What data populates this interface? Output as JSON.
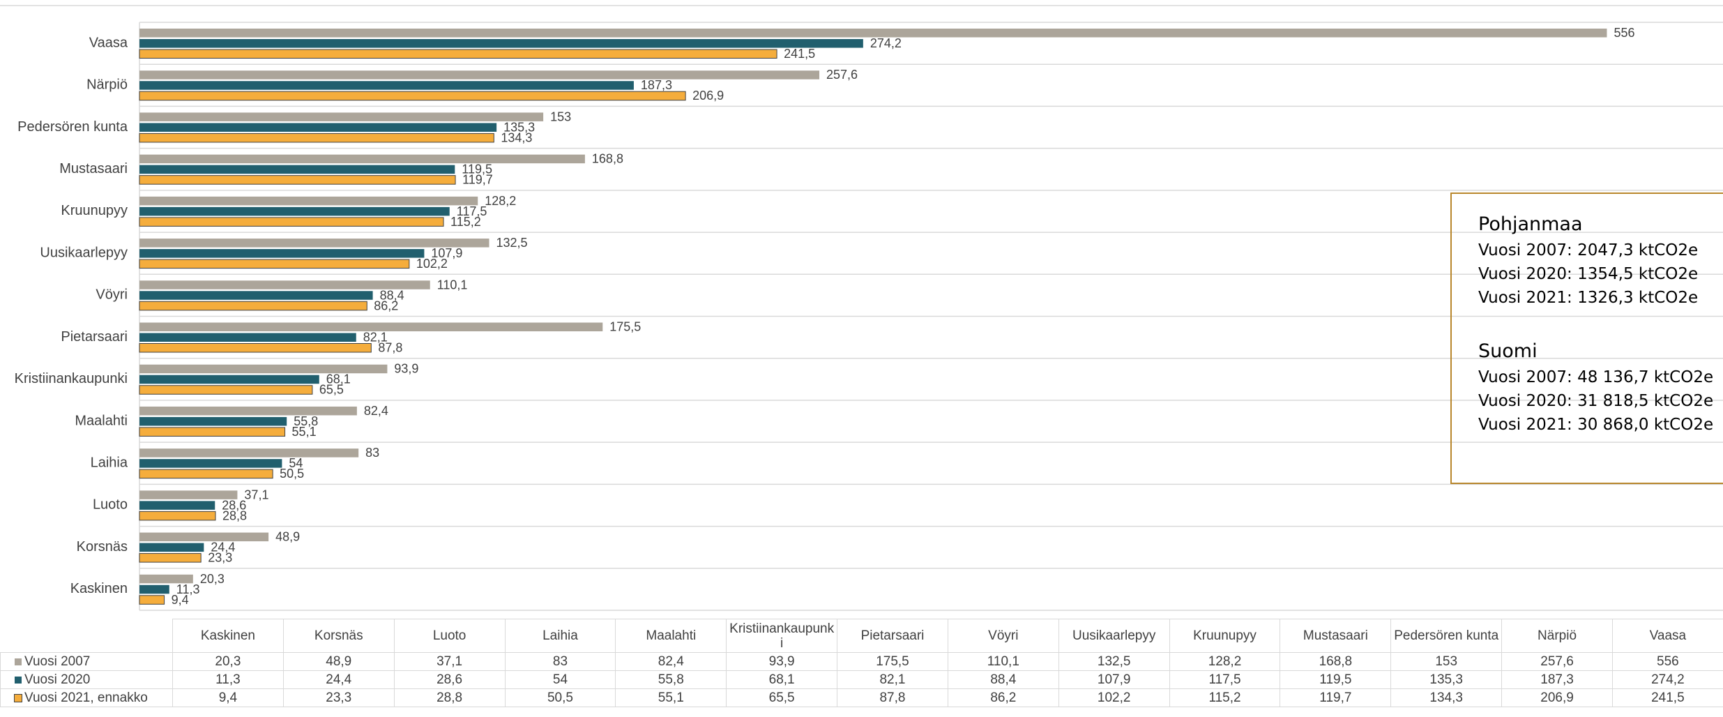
{
  "chart_data": {
    "type": "barh",
    "categories": [
      "Kaskinen",
      "Korsnäs",
      "Luoto",
      "Laihia",
      "Maalahti",
      "Kristiinankaupunki",
      "Pietarsaari",
      "Vöyri",
      "Uusikaarlepyy",
      "Kruunupyy",
      "Mustasaari",
      "Pedersören kunta",
      "Närpiö",
      "Vaasa"
    ],
    "series": [
      {
        "name": "Vuosi 2007",
        "color": "#aca59a",
        "values": [
          20.3,
          48.9,
          37.1,
          83,
          82.4,
          93.9,
          175.5,
          110.1,
          132.5,
          128.2,
          168.8,
          153,
          257.6,
          556
        ],
        "value_labels": [
          "20,3",
          "48,9",
          "37,1",
          "83",
          "82,4",
          "93,9",
          "175,5",
          "110,1",
          "132,5",
          "128,2",
          "168,8",
          "153",
          "257,6",
          "556"
        ]
      },
      {
        "name": "Vuosi 2020",
        "color": "#215f6e",
        "values": [
          11.3,
          24.4,
          28.6,
          54,
          55.8,
          68.1,
          82.1,
          88.4,
          107.9,
          117.5,
          119.5,
          135.3,
          187.3,
          274.2
        ],
        "value_labels": [
          "11,3",
          "24,4",
          "28,6",
          "54",
          "55,8",
          "68,1",
          "82,1",
          "88,4",
          "107,9",
          "117,5",
          "119,5",
          "135,3",
          "187,3",
          "274,2"
        ]
      },
      {
        "name": "Vuosi 2021, ennakko",
        "color": "#f5ad3c",
        "values": [
          9.4,
          23.3,
          28.8,
          50.5,
          55.1,
          65.5,
          87.8,
          86.2,
          102.2,
          115.2,
          119.7,
          134.3,
          206.9,
          241.5
        ],
        "value_labels": [
          "9,4",
          "23,3",
          "28,8",
          "50,5",
          "55,1",
          "65,5",
          "87,8",
          "86,2",
          "102,2",
          "115,2",
          "119,7",
          "134,3",
          "206,9",
          "241,5"
        ]
      }
    ],
    "xlim": [
      0,
      600
    ],
    "category_grid": true,
    "annotation": [
      {
        "title": "Pohjanmaa",
        "lines": [
          "Vuosi 2007: 2047,3 ktCO2e",
          "Vuosi 2020: 1354,5 ktCO2e",
          "Vuosi 2021: 1326,3 ktCO2e"
        ]
      },
      {
        "title": "Suomi",
        "lines": [
          "Vuosi 2007: 48 136,7 ktCO2e",
          "Vuosi 2020: 31 818,5 ktCO2e",
          "Vuosi 2021: 30 868,0 ktCO2e"
        ]
      }
    ]
  }
}
